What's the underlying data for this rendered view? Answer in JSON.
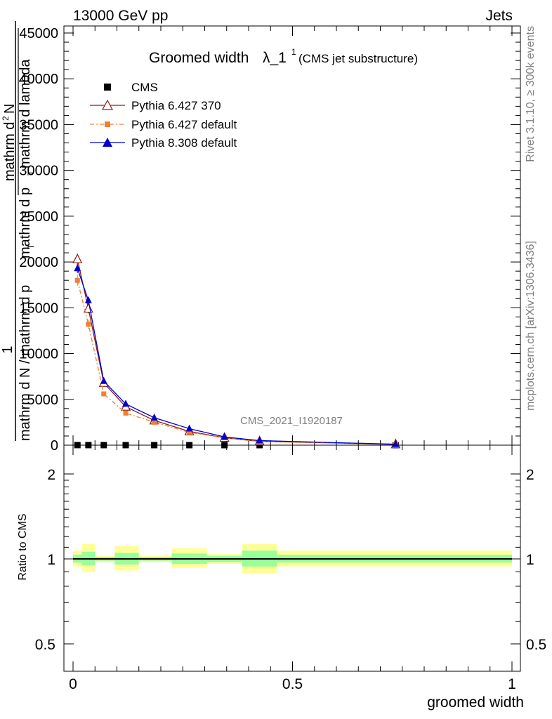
{
  "header": {
    "left": "13000 GeV pp",
    "right": "Jets"
  },
  "side_labels": {
    "rivet": "Rivet 3.1.10, ≥ 300k events",
    "mcplots": "mcplots.cern.ch [arXiv:1306.3436]"
  },
  "chart_data": [
    {
      "type": "line",
      "title_main": "Groomed width",
      "title_lambda": "λ_1",
      "title_sup": "1",
      "title_note": "(CMS jet substructure)",
      "watermark": "CMS_2021_I1920187",
      "ylabel": {
        "top_line1": "mathrm d",
        "top_line1_sup": "2",
        "top_line1_end": "N",
        "top_line2": "mathrm d p",
        "top_line2_sub": "T",
        "top_line2_end": " mathrm d lambda",
        "one": "1",
        "bottom": "mathrm d N / mathrm d p",
        "bottom_sub": "T"
      },
      "xlim": [
        0,
        1
      ],
      "ylim": [
        0,
        45000
      ],
      "y_ticks": [
        0,
        5000,
        10000,
        15000,
        20000,
        25000,
        30000,
        35000,
        40000,
        45000
      ],
      "y_tick_labels": [
        "0",
        "5000",
        "10000",
        "15000",
        "20000",
        "25000",
        "30000",
        "35000",
        "40000",
        "45000"
      ],
      "legend": [
        "CMS",
        "Pythia 6.427 370",
        "Pythia 6.427 default",
        "Pythia 8.308 default"
      ],
      "series": [
        {
          "name": "CMS",
          "color": "#000000",
          "marker": "square",
          "x": [
            0.01,
            0.035,
            0.07,
            0.12,
            0.185,
            0.265,
            0.345,
            0.425,
            0.735
          ],
          "y": [
            8,
            6,
            5,
            4,
            3,
            2,
            1.5,
            1,
            0.3
          ]
        },
        {
          "name": "Pythia 6.427 370",
          "color": "#8b1a1a",
          "marker": "open-triangle",
          "x": [
            0.01,
            0.035,
            0.07,
            0.12,
            0.185,
            0.265,
            0.345,
            0.425,
            0.735
          ],
          "y": [
            20300,
            14900,
            6800,
            4200,
            2700,
            1500,
            800,
            420,
            90
          ],
          "err": [
            600,
            500,
            250,
            150,
            100,
            60,
            40,
            25,
            20
          ]
        },
        {
          "name": "Pythia 6.427 default",
          "color": "#f08030",
          "marker": "square",
          "x": [
            0.01,
            0.035,
            0.07,
            0.12,
            0.185,
            0.265,
            0.345,
            0.425,
            0.735
          ],
          "y": [
            18000,
            13200,
            5600,
            3500,
            2500,
            1400,
            800,
            400,
            80
          ],
          "err": [
            600,
            500,
            250,
            150,
            100,
            60,
            40,
            25,
            20
          ]
        },
        {
          "name": "Pythia 8.308 default",
          "color": "#0000cc",
          "marker": "triangle",
          "x": [
            0.01,
            0.035,
            0.07,
            0.12,
            0.185,
            0.265,
            0.345,
            0.425,
            0.735
          ],
          "y": [
            19300,
            15800,
            7000,
            4500,
            3000,
            1800,
            900,
            500,
            100
          ],
          "err": [
            500,
            400,
            200,
            120,
            90,
            50,
            30,
            20,
            15
          ]
        }
      ]
    },
    {
      "type": "area",
      "ylabel": "Ratio to CMS",
      "xlabel": "groomed width",
      "xlim": [
        0,
        1
      ],
      "ylim": [
        0.4,
        2.3
      ],
      "y_scale": "log",
      "x_ticks": [
        0,
        0.5,
        1
      ],
      "x_tick_labels": [
        "0",
        "0.5",
        "1"
      ],
      "y_ticks": [
        0.5,
        1,
        2
      ],
      "y_tick_labels": [
        "0.5",
        "1",
        "2"
      ],
      "ratio_line": 1,
      "bands": [
        {
          "x0": 0.0,
          "x1": 0.02,
          "inner": [
            0.97,
            1.035
          ],
          "outer": [
            0.94,
            1.07
          ]
        },
        {
          "x0": 0.02,
          "x1": 0.05,
          "inner": [
            0.95,
            1.06
          ],
          "outer": [
            0.9,
            1.13
          ]
        },
        {
          "x0": 0.05,
          "x1": 0.095,
          "inner": [
            0.985,
            1.015
          ],
          "outer": [
            0.975,
            1.025
          ]
        },
        {
          "x0": 0.095,
          "x1": 0.15,
          "inner": [
            0.955,
            1.05
          ],
          "outer": [
            0.91,
            1.11
          ]
        },
        {
          "x0": 0.15,
          "x1": 0.225,
          "inner": [
            0.985,
            1.015
          ],
          "outer": [
            0.975,
            1.025
          ]
        },
        {
          "x0": 0.225,
          "x1": 0.305,
          "inner": [
            0.96,
            1.045
          ],
          "outer": [
            0.93,
            1.09
          ]
        },
        {
          "x0": 0.305,
          "x1": 0.385,
          "inner": [
            0.975,
            1.025
          ],
          "outer": [
            0.96,
            1.04
          ]
        },
        {
          "x0": 0.385,
          "x1": 0.465,
          "inner": [
            0.94,
            1.07
          ],
          "outer": [
            0.89,
            1.13
          ]
        },
        {
          "x0": 0.465,
          "x1": 1.0,
          "inner": [
            0.97,
            1.035
          ],
          "outer": [
            0.94,
            1.07
          ]
        }
      ],
      "colors": {
        "inner": "#99ff99",
        "outer": "#ffff99",
        "line": "#000000"
      }
    }
  ]
}
